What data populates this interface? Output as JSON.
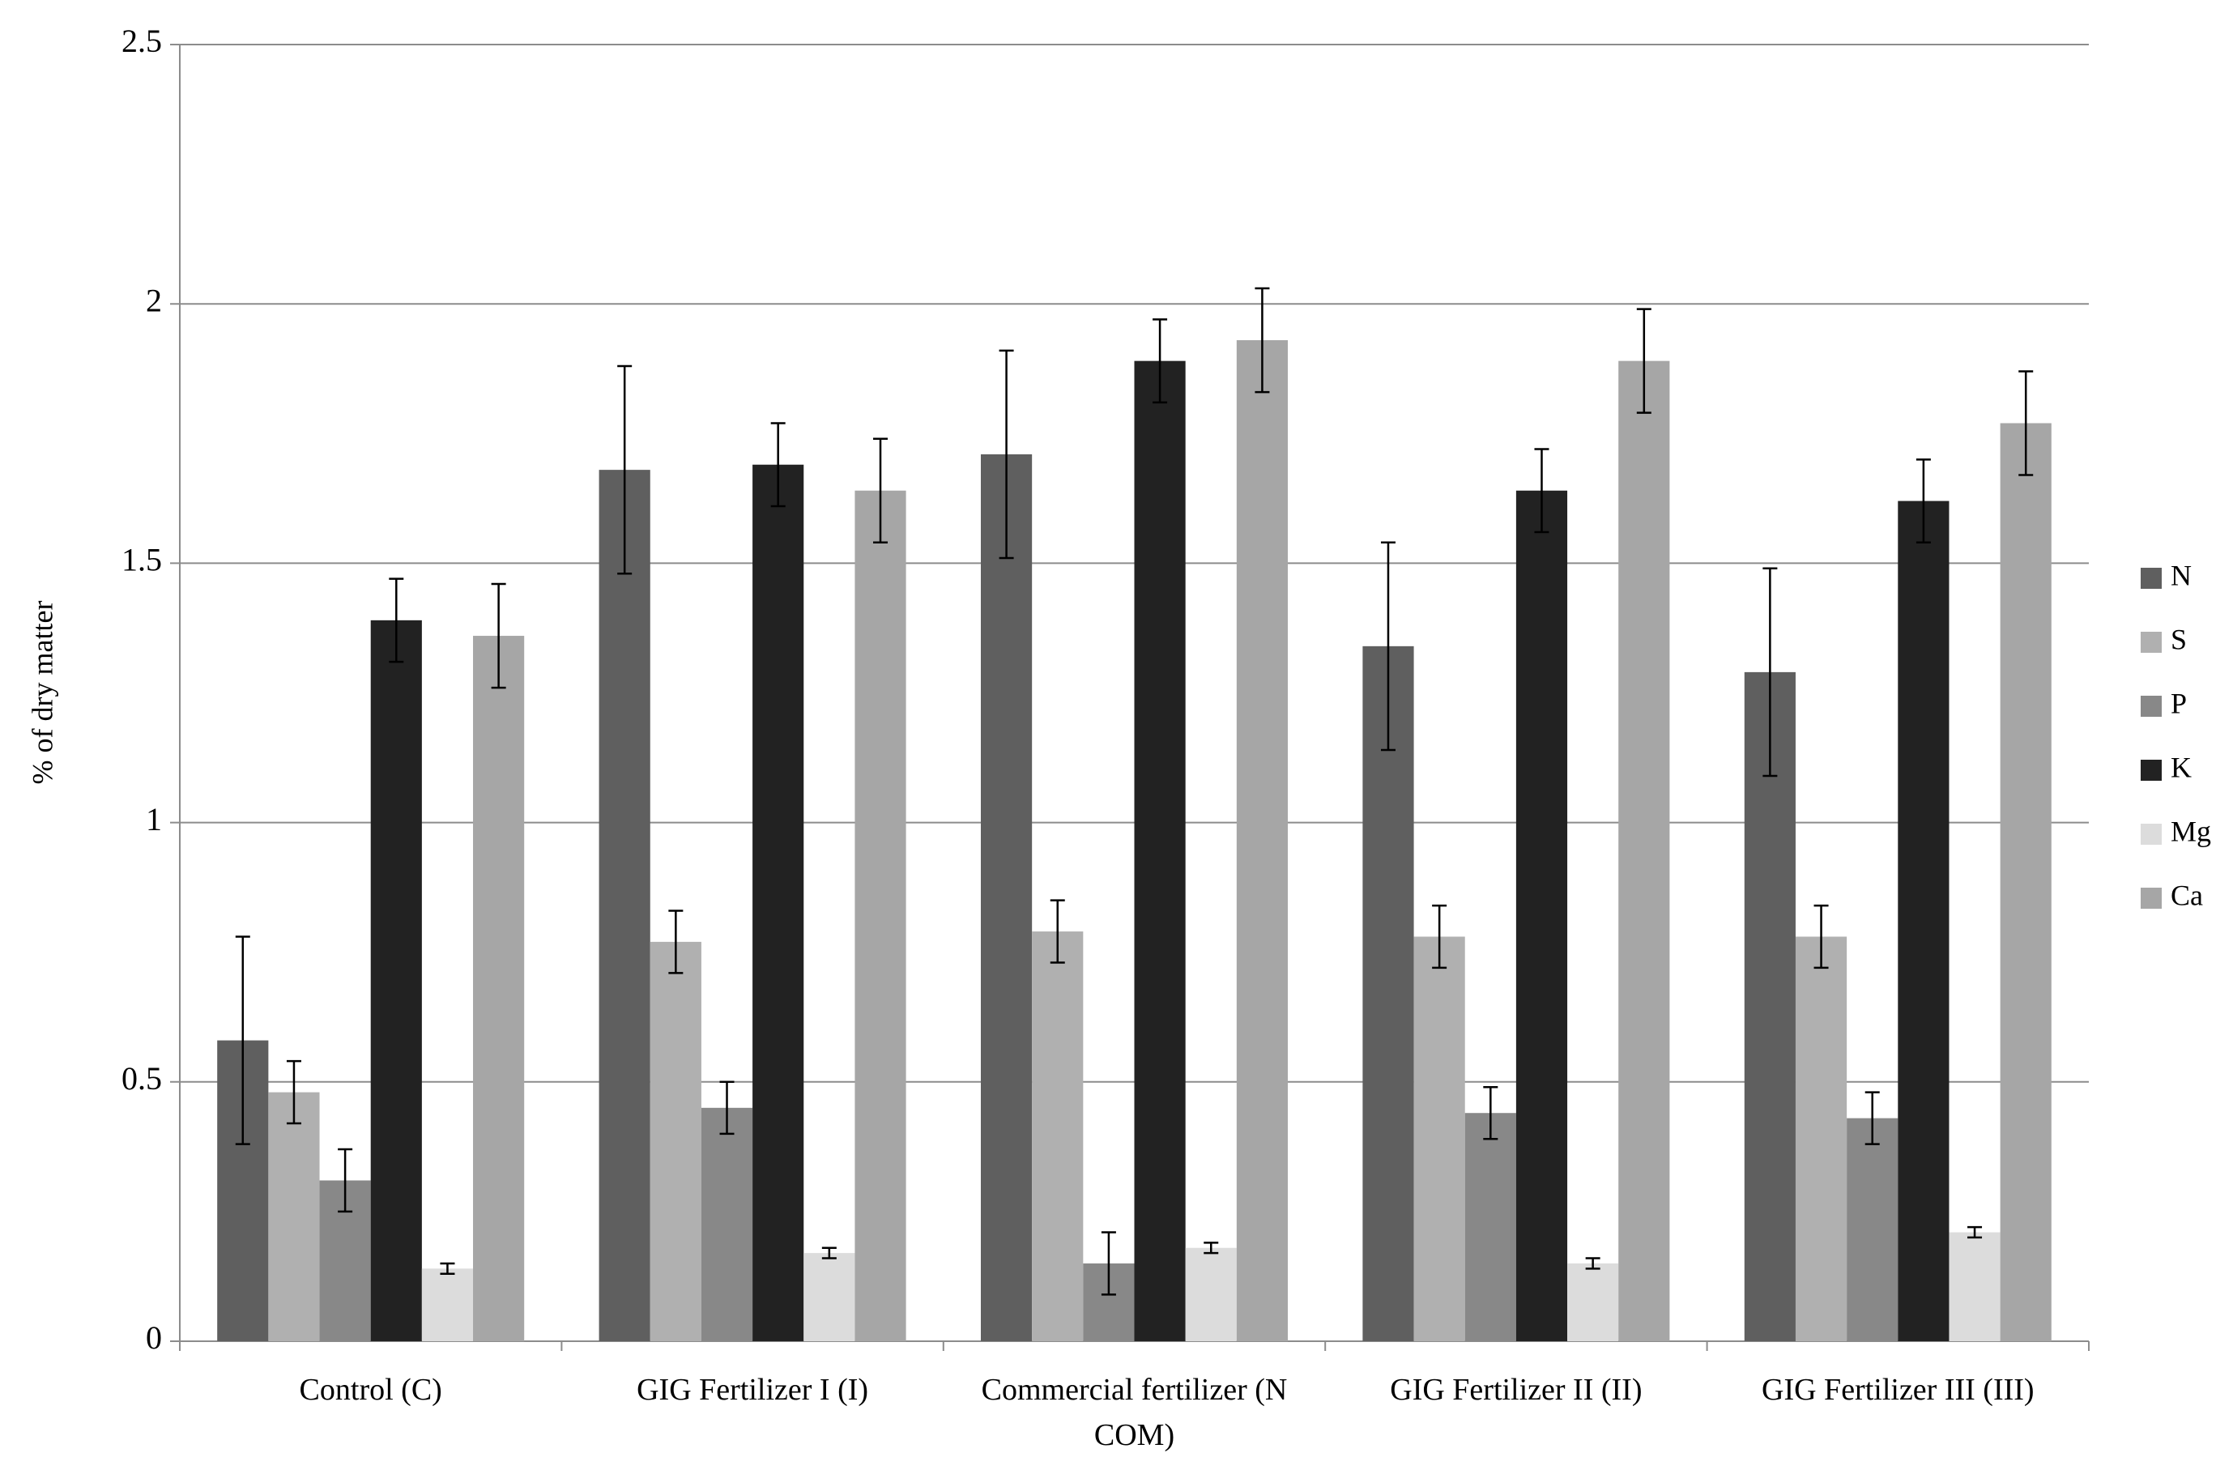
{
  "chart_data": {
    "type": "bar",
    "y_label": "% of dry matter",
    "categories": [
      "Control (C)",
      "GIG Fertilizer I (I)",
      "Commercial fertilizer (N COM)",
      "GIG Fertilizer II (II)",
      "GIG Fertilizer III (III)"
    ],
    "series": [
      {
        "name": "N",
        "color": "#5f5f5f",
        "values": [
          0.58,
          1.68,
          1.71,
          1.34,
          1.29
        ],
        "errors": [
          0.2,
          0.2,
          0.2,
          0.2,
          0.2
        ]
      },
      {
        "name": "S",
        "color": "#b0b0b0",
        "values": [
          0.48,
          0.77,
          0.79,
          0.78,
          0.78
        ],
        "errors": [
          0.06,
          0.06,
          0.06,
          0.06,
          0.06
        ]
      },
      {
        "name": "P",
        "color": "#888888",
        "values": [
          0.31,
          0.45,
          0.15,
          0.44,
          0.43
        ],
        "errors": [
          0.06,
          0.05,
          0.06,
          0.05,
          0.05
        ]
      },
      {
        "name": "K",
        "color": "#222222",
        "values": [
          1.39,
          1.69,
          1.89,
          1.64,
          1.62
        ],
        "errors": [
          0.08,
          0.08,
          0.08,
          0.08,
          0.08
        ]
      },
      {
        "name": "Mg",
        "color": "#dcdcdc",
        "values": [
          0.14,
          0.17,
          0.18,
          0.15,
          0.21
        ],
        "errors": [
          0.01,
          0.01,
          0.01,
          0.01,
          0.01
        ]
      },
      {
        "name": "Ca",
        "color": "#a6a6a6",
        "values": [
          1.36,
          1.64,
          1.93,
          1.89,
          1.77
        ],
        "errors": [
          0.1,
          0.1,
          0.1,
          0.1,
          0.1
        ]
      }
    ],
    "ylim": [
      0,
      2.5
    ],
    "yticks": [
      0,
      0.5,
      1,
      1.5,
      2,
      2.5
    ],
    "grid": true,
    "legend": "right"
  }
}
